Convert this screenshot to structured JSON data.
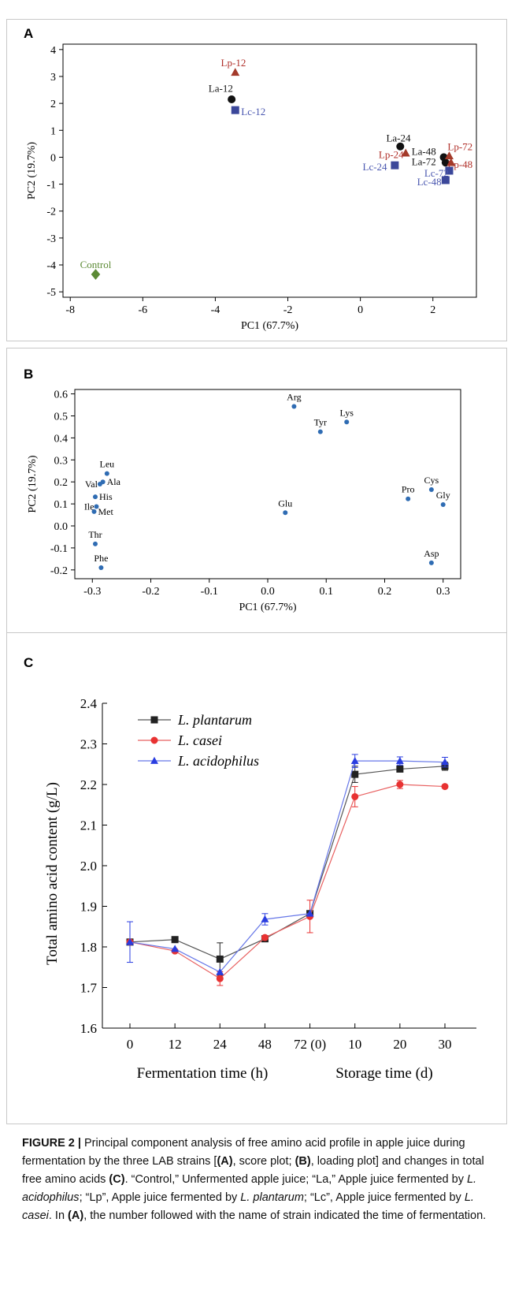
{
  "panels": {
    "a": {
      "letter": "A"
    },
    "b": {
      "letter": "B"
    },
    "c": {
      "letter": "C"
    }
  },
  "chart_data": [
    {
      "id": "A",
      "type": "scatter",
      "xlabel": "PC1 (67.7%)",
      "ylabel": "PC2 (19.7%)",
      "xlim": [
        -8.2,
        3.2
      ],
      "ylim": [
        -5.2,
        4.2
      ],
      "xticks": [
        -8,
        -6,
        -4,
        -2,
        0,
        2
      ],
      "yticks": [
        -5,
        -4,
        -3,
        -2,
        -1,
        0,
        1,
        2,
        3,
        4
      ],
      "grid": false,
      "points": [
        {
          "label": "Lp-12",
          "x": -3.45,
          "y": 3.15,
          "group": "Lp",
          "lx": -3.5,
          "ly": 3.5
        },
        {
          "label": "La-12",
          "x": -3.55,
          "y": 2.15,
          "group": "La",
          "lx": -3.85,
          "ly": 2.55
        },
        {
          "label": "Lc-12",
          "x": -3.45,
          "y": 1.75,
          "group": "Lc",
          "lx": -2.95,
          "ly": 1.68
        },
        {
          "label": "La-24",
          "x": 1.1,
          "y": 0.4,
          "group": "La",
          "lx": 1.05,
          "ly": 0.7
        },
        {
          "label": "Lp-24",
          "x": 1.25,
          "y": 0.15,
          "group": "Lp",
          "lx": 0.85,
          "ly": 0.08
        },
        {
          "label": "Lc-24",
          "x": 0.95,
          "y": -0.3,
          "group": "Lc",
          "lx": 0.4,
          "ly": -0.37
        },
        {
          "label": "La-48",
          "x": 2.3,
          "y": 0.0,
          "group": "La",
          "lx": 1.75,
          "ly": 0.2
        },
        {
          "label": "La-72",
          "x": 2.35,
          "y": -0.2,
          "group": "La",
          "lx": 1.75,
          "ly": -0.18
        },
        {
          "label": "Lp-72",
          "x": 2.45,
          "y": 0.05,
          "group": "Lp",
          "lx": 2.75,
          "ly": 0.38
        },
        {
          "label": "Lp-48",
          "x": 2.5,
          "y": -0.2,
          "group": "Lp",
          "lx": 2.75,
          "ly": -0.28
        },
        {
          "label": "Lc-72",
          "x": 2.45,
          "y": -0.5,
          "group": "Lc",
          "lx": 2.1,
          "ly": -0.6
        },
        {
          "label": "Lc-48",
          "x": 2.35,
          "y": -0.85,
          "group": "Lc",
          "lx": 1.9,
          "ly": -0.92
        },
        {
          "label": "Control",
          "x": -7.3,
          "y": -4.35,
          "group": "Control",
          "lx": -7.3,
          "ly": -4.0
        }
      ],
      "group_styles": {
        "La": {
          "shape": "circle",
          "color": "#111111",
          "label_color": "#111111"
        },
        "Lp": {
          "shape": "triangle",
          "color": "#a33a2a",
          "label_color": "#b0302a"
        },
        "Lc": {
          "shape": "square",
          "color": "#3b479a",
          "label_color": "#4a57b0"
        },
        "Control": {
          "shape": "diamond",
          "color": "#5c8a35",
          "label_color": "#5c8a35"
        }
      }
    },
    {
      "id": "B",
      "type": "scatter",
      "xlabel": "PC1 (67.7%)",
      "ylabel": "PC2 (19.7%)",
      "xlim": [
        -0.33,
        0.33
      ],
      "ylim": [
        -0.24,
        0.62
      ],
      "xticks": [
        -0.3,
        -0.2,
        -0.1,
        0.0,
        0.1,
        0.2,
        0.3
      ],
      "xtick_labels": [
        "-0.3",
        "-0.2",
        "-0.1",
        "0.0",
        "0.1",
        "0.2",
        "0.3"
      ],
      "yticks": [
        -0.2,
        -0.1,
        0.0,
        0.1,
        0.2,
        0.3,
        0.4,
        0.5,
        0.6
      ],
      "ytick_labels": [
        "-0.2",
        "-0.1",
        "0.0",
        "0.1",
        "0.2",
        "0.3",
        "0.4",
        "0.5",
        "0.6"
      ],
      "grid": false,
      "color": "#2f6cb3",
      "points": [
        {
          "label": "Arg",
          "x": 0.045,
          "y": 0.543,
          "pos": "above"
        },
        {
          "label": "Lys",
          "x": 0.135,
          "y": 0.472,
          "pos": "above"
        },
        {
          "label": "Tyr",
          "x": 0.09,
          "y": 0.428,
          "pos": "above"
        },
        {
          "label": "Leu",
          "x": -0.275,
          "y": 0.238,
          "pos": "above"
        },
        {
          "label": "Ala",
          "x": -0.282,
          "y": 0.2,
          "pos": "right"
        },
        {
          "label": "Val",
          "x": -0.287,
          "y": 0.19,
          "pos": "left"
        },
        {
          "label": "His",
          "x": -0.295,
          "y": 0.132,
          "pos": "right"
        },
        {
          "label": "Ile",
          "x": -0.293,
          "y": 0.088,
          "pos": "left"
        },
        {
          "label": "Met",
          "x": -0.297,
          "y": 0.065,
          "pos": "right"
        },
        {
          "label": "Cys",
          "x": 0.28,
          "y": 0.165,
          "pos": "above"
        },
        {
          "label": "Pro",
          "x": 0.24,
          "y": 0.123,
          "pos": "above"
        },
        {
          "label": "Gly",
          "x": 0.3,
          "y": 0.097,
          "pos": "above"
        },
        {
          "label": "Glu",
          "x": 0.03,
          "y": 0.06,
          "pos": "above"
        },
        {
          "label": "Thr",
          "x": -0.295,
          "y": -0.082,
          "pos": "above"
        },
        {
          "label": "Phe",
          "x": -0.285,
          "y": -0.19,
          "pos": "above"
        },
        {
          "label": "Asp",
          "x": 0.28,
          "y": -0.168,
          "pos": "above"
        }
      ]
    },
    {
      "id": "C",
      "type": "line",
      "ylabel": "Total amino acid content (g/L)",
      "xlabel_left": "Fermentation time (h)",
      "xlabel_right": "Storage time (d)",
      "categories": [
        "0",
        "12",
        "24",
        "48",
        "72 (0)",
        "10",
        "20",
        "30"
      ],
      "ylim": [
        1.6,
        2.4
      ],
      "yticks": [
        "1.6",
        "1.7",
        "1.8",
        "1.9",
        "2.0",
        "2.1",
        "2.2",
        "2.3",
        "2.4"
      ],
      "grid": false,
      "legend": "top-left",
      "series": [
        {
          "name": "L. plantarum",
          "color": "#222222",
          "line_color": "#555555",
          "marker": "square",
          "values": [
            1.812,
            1.818,
            1.77,
            1.82,
            1.882,
            2.225,
            2.238,
            2.245
          ],
          "errors": [
            0.0,
            0.0,
            0.04,
            0.0,
            0.0,
            0.02,
            0.0,
            0.01
          ]
        },
        {
          "name": "L. casei",
          "color": "#e83232",
          "line_color": "#e86060",
          "marker": "circle",
          "values": [
            1.812,
            1.79,
            1.722,
            1.823,
            1.875,
            2.17,
            2.2,
            2.195
          ],
          "errors": [
            0.0,
            0.0,
            0.017,
            0.0,
            0.04,
            0.025,
            0.01,
            0.0
          ]
        },
        {
          "name": "L. acidophilus",
          "color": "#2a3de0",
          "line_color": "#6677e8",
          "marker": "triangle",
          "values": [
            1.812,
            1.795,
            1.738,
            1.868,
            1.882,
            2.258,
            2.258,
            2.255
          ],
          "errors": [
            0.05,
            0.0,
            0.0,
            0.014,
            0.0,
            0.016,
            0.01,
            0.012
          ]
        }
      ]
    }
  ],
  "caption": {
    "label": "FIGURE 2 |",
    "segments": [
      {
        "t": " Principal component analysis of free amino acid profile in apple juice during fermentation by the three LAB strains [",
        "s": "n"
      },
      {
        "t": "(A)",
        "s": "b"
      },
      {
        "t": ", score plot; ",
        "s": "n"
      },
      {
        "t": "(B)",
        "s": "b"
      },
      {
        "t": ", loading plot] and changes in total free amino acids ",
        "s": "n"
      },
      {
        "t": "(C)",
        "s": "b"
      },
      {
        "t": ". “Control,” Unfermented apple juice; “La,” Apple juice fermented by ",
        "s": "n"
      },
      {
        "t": "L. acidophilus",
        "s": "i"
      },
      {
        "t": "; “Lp”, Apple juice fermented by ",
        "s": "n"
      },
      {
        "t": "L. plantarum",
        "s": "i"
      },
      {
        "t": "; “Lc”, Apple juice fermented by ",
        "s": "n"
      },
      {
        "t": "L. casei",
        "s": "i"
      },
      {
        "t": ". In ",
        "s": "n"
      },
      {
        "t": "(A)",
        "s": "b"
      },
      {
        "t": ", the number followed with the name of strain indicated the time of fermentation.",
        "s": "n"
      }
    ]
  }
}
